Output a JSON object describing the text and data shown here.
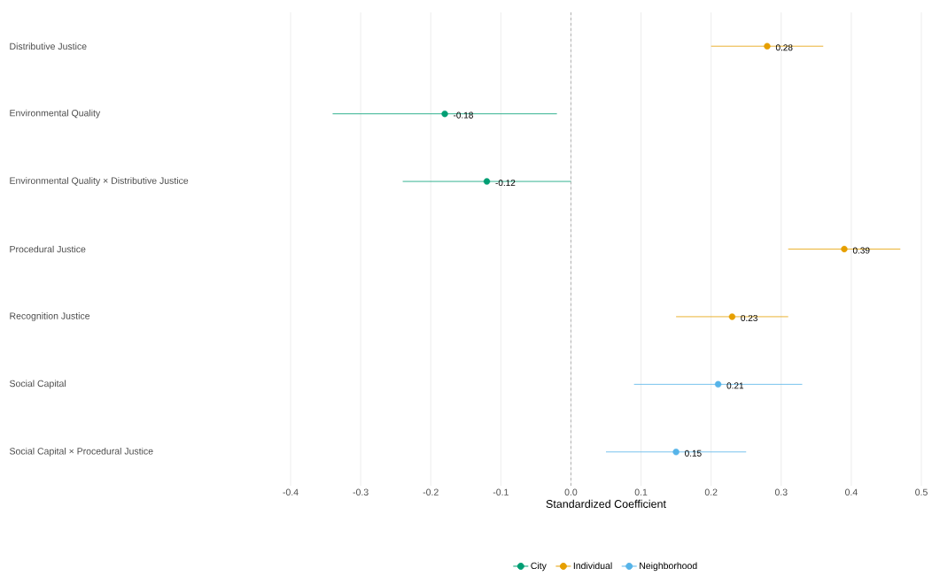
{
  "chart_data": {
    "type": "scatter",
    "orientation": "horizontal",
    "xlabel": "Standardized Coefficient",
    "categories": [
      "Distributive Justice",
      "Environmental Quality",
      "Environmental Quality × Distributive Justice",
      "Procedural Justice",
      "Recognition Justice",
      "Social Capital",
      "Social Capital × Procedural Justice"
    ],
    "series": [
      {
        "name": "City",
        "color": "#009e73",
        "values": [
          null,
          -0.18,
          -0.12,
          null,
          null,
          null,
          null
        ],
        "errors": [
          null,
          [
            -0.34,
            -0.02
          ],
          [
            -0.24,
            0.0
          ],
          null,
          null,
          null,
          null
        ]
      },
      {
        "name": "Individual",
        "color": "#e69f00",
        "values": [
          0.28,
          null,
          null,
          0.39,
          0.23,
          null,
          null
        ],
        "errors": [
          [
            0.2,
            0.36
          ],
          null,
          null,
          [
            0.31,
            0.47
          ],
          [
            0.15,
            0.31
          ],
          null,
          null
        ]
      },
      {
        "name": "Neighborhood",
        "color": "#56b4e9",
        "values": [
          null,
          null,
          null,
          null,
          null,
          0.21,
          0.15
        ],
        "errors": [
          null,
          null,
          null,
          null,
          null,
          [
            0.09,
            0.33
          ],
          [
            0.05,
            0.25
          ]
        ]
      }
    ],
    "xlim": [
      -0.4,
      0.5
    ],
    "xticks": [
      -0.4,
      -0.3,
      -0.2,
      -0.1,
      {
        "value": 0,
        "label": "0.0"
      },
      0.1,
      0.2,
      0.3,
      0.4,
      0.5
    ],
    "ref_lines": [
      {
        "axis": "x",
        "value": 0,
        "line_style": "dashed",
        "color": "#a0a0a0"
      }
    ],
    "grid": "x",
    "legend": "bottom",
    "marker": "circle",
    "data_labels": true
  }
}
